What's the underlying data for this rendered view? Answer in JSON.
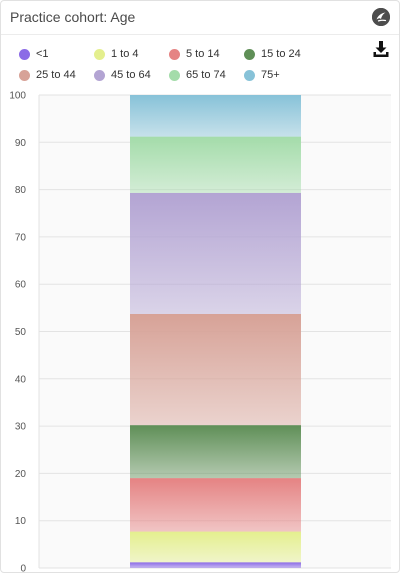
{
  "window": {
    "title": "Practice cohort: Age",
    "icon": "app-logo-icon",
    "download_icon": "download-icon"
  },
  "colors": {
    "<1": "#8b6be6",
    "1 to 4": "#e4ef8e",
    "5 to 14": "#e58383",
    "15 to 24": "#5f8f57",
    "25 to 44": "#d7a297",
    "45 to 64": "#b3a4d3",
    "65 to 74": "#a4dcaa",
    "75+": "#87c2d8"
  },
  "chart_data": {
    "type": "bar",
    "stacked": true,
    "categories": [
      ""
    ],
    "series": [
      {
        "name": "<1",
        "values": [
          1.2
        ]
      },
      {
        "name": "1 to 4",
        "values": [
          6.5
        ]
      },
      {
        "name": "5 to 14",
        "values": [
          11.3
        ]
      },
      {
        "name": "15 to 24",
        "values": [
          11.2
        ]
      },
      {
        "name": "25 to 44",
        "values": [
          23.5
        ]
      },
      {
        "name": "45 to 64",
        "values": [
          25.6
        ]
      },
      {
        "name": "65 to 74",
        "values": [
          11.9
        ]
      },
      {
        "name": "75+",
        "values": [
          8.8
        ]
      }
    ],
    "title": "Practice cohort: Age",
    "xlabel": "",
    "ylabel": "",
    "ylim": [
      0,
      100
    ],
    "yticks": [
      0,
      10,
      20,
      30,
      40,
      50,
      60,
      70,
      80,
      90,
      100
    ],
    "grid": true,
    "legend": "top"
  }
}
